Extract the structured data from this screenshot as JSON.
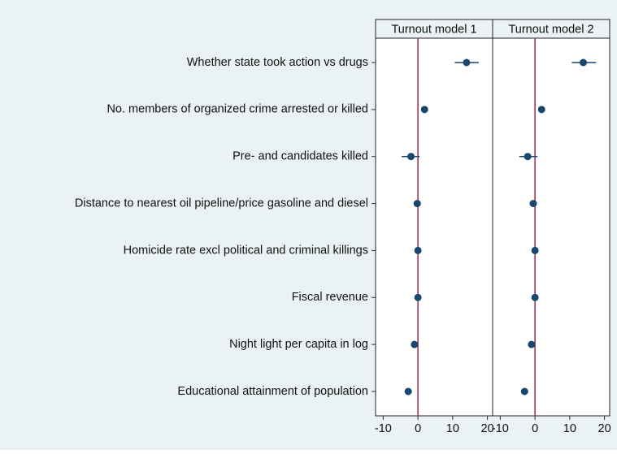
{
  "chart_data": {
    "type": "coefplot",
    "categories": [
      "Whether state took action vs drugs",
      "No. members of organized crime arrested or killed",
      "Pre- and candidates killed",
      "Distance to nearest oil pipeline/price gasoline and diesel",
      "Homicide rate excl political and criminal killings",
      "Fiscal revenue",
      "Night light per capita in log",
      "Educational attainment of population"
    ],
    "series": [
      {
        "name": "Turnout model 1",
        "color": "#1a476f",
        "values": [
          14,
          1.9,
          -2,
          -0.2,
          0,
          0,
          -1,
          -2.8
        ],
        "lower": [
          10.6,
          null,
          -4.7,
          null,
          null,
          null,
          null,
          null
        ],
        "upper": [
          17.5,
          null,
          0.5,
          null,
          null,
          null,
          null,
          null
        ]
      },
      {
        "name": "Turnout model 2",
        "color": "#1a476f",
        "values": [
          13.9,
          1.9,
          -2.1,
          -0.5,
          0,
          0,
          -1,
          -3
        ],
        "lower": [
          10.6,
          null,
          -4.5,
          null,
          null,
          null,
          null,
          null
        ],
        "upper": [
          17.6,
          null,
          0.7,
          null,
          null,
          null,
          null,
          null
        ]
      }
    ],
    "reference_line": 0,
    "reference_color": "#a0284b",
    "xlim": [
      -12.2,
      21.5
    ],
    "xticks": [
      -10,
      0,
      10,
      20
    ]
  }
}
